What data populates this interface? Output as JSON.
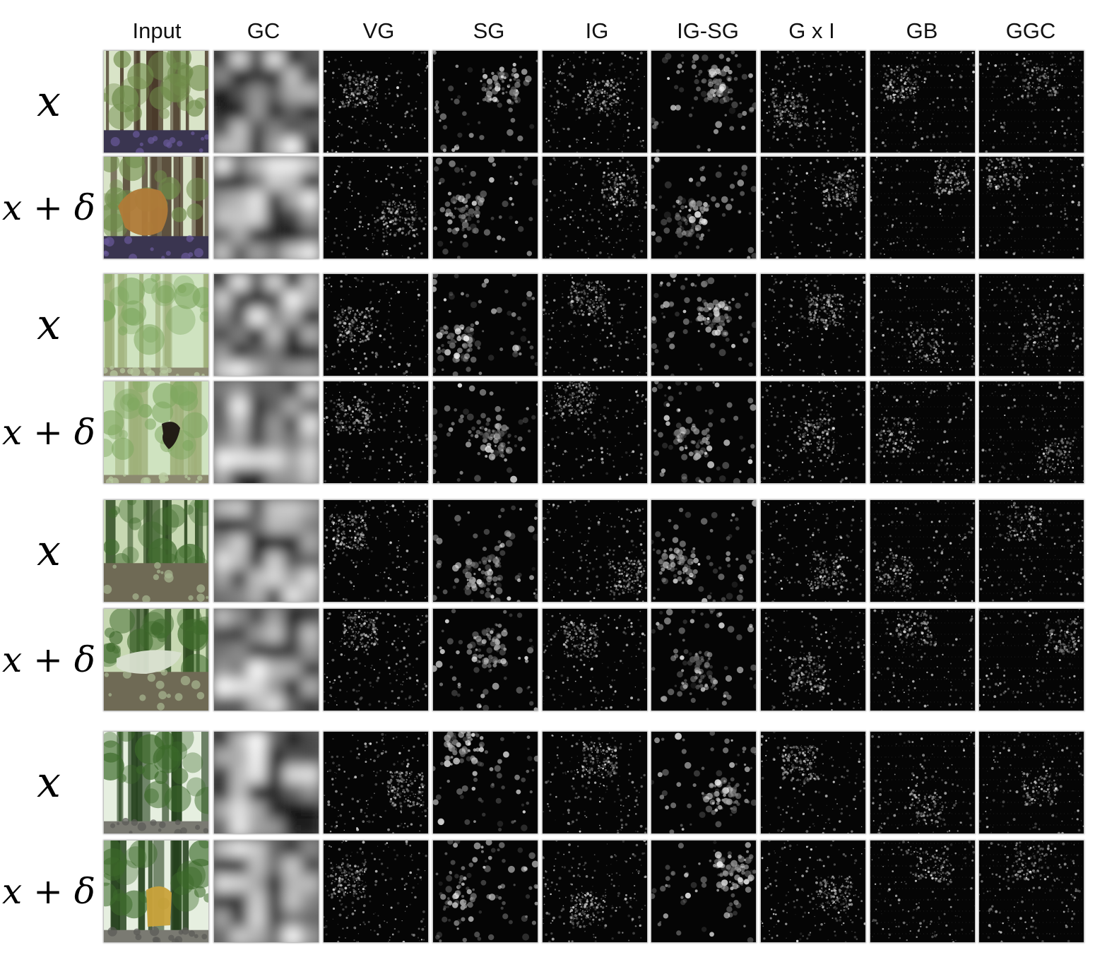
{
  "columns": [
    {
      "label": "Input",
      "kind": "input"
    },
    {
      "label": "GC",
      "kind": "gradcam"
    },
    {
      "label": "VG",
      "kind": "saliency"
    },
    {
      "label": "SG",
      "kind": "saliency-smooth"
    },
    {
      "label": "IG",
      "kind": "saliency"
    },
    {
      "label": "IG-SG",
      "kind": "saliency-smooth"
    },
    {
      "label": "G x I",
      "kind": "saliency"
    },
    {
      "label": "GB",
      "kind": "guided"
    },
    {
      "label": "GGC",
      "kind": "guided"
    }
  ],
  "groups": [
    {
      "scene": "forest with purple flowers",
      "patch": "dog face",
      "rows": [
        {
          "label": "x",
          "perturbed": false
        },
        {
          "label": "x + δ",
          "perturbed": true
        }
      ]
    },
    {
      "scene": "bamboo forest",
      "patch": "dark animal silhouette",
      "rows": [
        {
          "label": "x",
          "perturbed": false
        },
        {
          "label": "x + δ",
          "perturbed": true
        }
      ]
    },
    {
      "scene": "forest path",
      "patch": "white flowers",
      "rows": [
        {
          "label": "x",
          "perturbed": false
        },
        {
          "label": "x + δ",
          "perturbed": true
        }
      ]
    },
    {
      "scene": "tree-lined road",
      "patch": "yellow object",
      "rows": [
        {
          "label": "x",
          "perturbed": false
        },
        {
          "label": "x + δ",
          "perturbed": true
        }
      ]
    }
  ],
  "colors": {
    "background": "#ffffff",
    "map_background": "#050505",
    "map_highlight": "#ffffff"
  },
  "icons": {
    "input": "photo-thumbnail",
    "gradcam": "grayscale-heatmap",
    "saliency": "noise-saliency-map"
  }
}
